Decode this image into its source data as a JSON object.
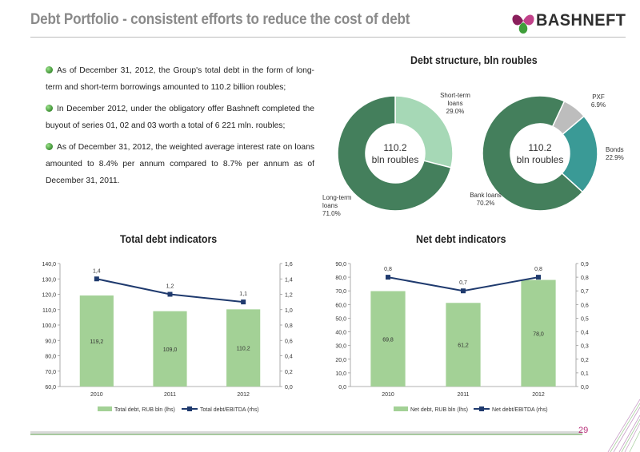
{
  "header": {
    "title": "Debt Portfolio - consistent efforts to reduce the cost of debt",
    "logo_text": "BASHNEFT"
  },
  "bullets": [
    "As of December 31, 2012, the Group's total debt in the form of long-term and short-term borrowings amounted to 110.2 billion roubles;",
    "In December 2012, under the obligatory offer Bashneft completed the buyout of series 01, 02 and 03 worth a total of 6 221 mln. roubles;",
    "As of December 31, 2012, the weighted average interest rate on loans amounted to 8.4% per annum compared to 8.7% per annum as of December 31, 2011."
  ],
  "page_number": "29",
  "colors": {
    "accent_green": "#3f7d5c",
    "light_green": "#9fd3ae",
    "teal": "#3a9a96",
    "grey": "#bdbdbd",
    "bar_green": "#9fce92",
    "line_navy": "#1f3a6e",
    "page_number": "#b8307a"
  },
  "chart_data": [
    {
      "type": "pie",
      "title": "Debt structure, bln roubles",
      "center_label": [
        "110.2",
        "bln roubles"
      ],
      "slices": [
        {
          "name": "Short-term loans",
          "label_lines": [
            "Short-term",
            "loans",
            "29.0%"
          ],
          "value": 29.0,
          "color": "#a6d8b6"
        },
        {
          "name": "Long-term loans",
          "label_lines": [
            "Long-term",
            "loans",
            "71.0%"
          ],
          "value": 71.0,
          "color": "#447f5c"
        }
      ]
    },
    {
      "type": "pie",
      "title": "",
      "center_label": [
        "110.2",
        "bln roubles"
      ],
      "slices": [
        {
          "name": "PXF",
          "label_lines": [
            "PXF",
            "6.9%"
          ],
          "value": 6.9,
          "color": "#bdbdbd"
        },
        {
          "name": "Bonds",
          "label_lines": [
            "Bonds",
            "22.9%"
          ],
          "value": 22.9,
          "color": "#3a9a96"
        },
        {
          "name": "Bank loans",
          "label_lines": [
            "Bank loans",
            "70.2%"
          ],
          "value": 70.2,
          "color": "#447f5c"
        }
      ]
    },
    {
      "type": "bar",
      "title": "Total debt indicators",
      "categories": [
        "2010",
        "2011",
        "2012"
      ],
      "series": [
        {
          "name": "Total debt, RUB bln (lhs)",
          "values": [
            119.2,
            109.0,
            110.2
          ],
          "labels": [
            "119,2",
            "109,0",
            "110,2"
          ]
        },
        {
          "name": "Total debt/EBITDA (rhs)",
          "values": [
            1.4,
            1.2,
            1.1
          ],
          "labels": [
            "1,4",
            "1,2",
            "1,1"
          ],
          "axis": "right",
          "kind": "line"
        }
      ],
      "ylim": [
        60,
        140
      ],
      "y_ticks": [
        "60,0",
        "70,0",
        "80,0",
        "90,0",
        "100,0",
        "110,0",
        "120,0",
        "130,0",
        "140,0"
      ],
      "y2lim": [
        0,
        1.6
      ],
      "y2_ticks": [
        "0,0",
        "0,2",
        "0,4",
        "0,6",
        "0,8",
        "1,0",
        "1,2",
        "1,4",
        "1,6"
      ],
      "legend": "bottom"
    },
    {
      "type": "bar",
      "title": "Net debt indicators",
      "categories": [
        "2010",
        "2011",
        "2012"
      ],
      "series": [
        {
          "name": "Net debt, RUB bln (lhs)",
          "values": [
            69.8,
            61.2,
            78.0
          ],
          "labels": [
            "69,8",
            "61,2",
            "78,0"
          ]
        },
        {
          "name": "Net debt/EBITDA (rhs)",
          "values": [
            0.8,
            0.7,
            0.8
          ],
          "labels": [
            "0,8",
            "0,7",
            "0,8"
          ],
          "axis": "right",
          "kind": "line"
        }
      ],
      "ylim": [
        0,
        90
      ],
      "y_ticks": [
        "0,0",
        "10,0",
        "20,0",
        "30,0",
        "40,0",
        "50,0",
        "60,0",
        "70,0",
        "80,0",
        "90,0"
      ],
      "y2lim": [
        0,
        0.9
      ],
      "y2_ticks": [
        "0,0",
        "0,1",
        "0,2",
        "0,3",
        "0,4",
        "0,5",
        "0,6",
        "0,7",
        "0,8",
        "0,9"
      ],
      "legend": "bottom"
    }
  ]
}
